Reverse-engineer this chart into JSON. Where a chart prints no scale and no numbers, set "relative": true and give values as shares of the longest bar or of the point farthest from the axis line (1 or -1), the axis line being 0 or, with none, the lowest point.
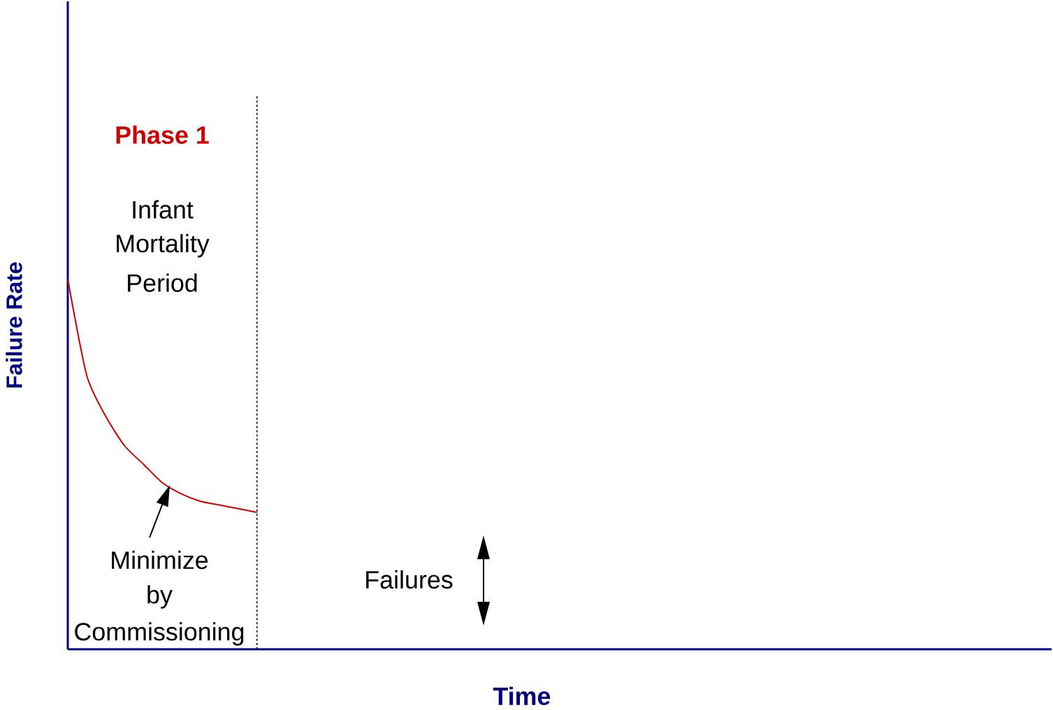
{
  "chart_data": {
    "type": "line",
    "relative": true,
    "marker": "none",
    "line_style": "solid",
    "xlabel": "Time",
    "ylabel": "Failure Rate",
    "categories": [
      null,
      null,
      null,
      null,
      null,
      null,
      null,
      null,
      null,
      null,
      null,
      null,
      null,
      null,
      null,
      null,
      null,
      null,
      null,
      null,
      null,
      null,
      null,
      null,
      null,
      null,
      null,
      null,
      null,
      null,
      null,
      null,
      null,
      null,
      null,
      null,
      null,
      null,
      null,
      null,
      null,
      null,
      null,
      null,
      null,
      null,
      null,
      null,
      null,
      null,
      null,
      null,
      null
    ],
    "series": [
      {
        "color": "#cc0000",
        "values": [
          1,
          0.74,
          0.63,
          0.55,
          0.5,
          0.45,
          0.42,
          0.4,
          0.39,
          0.38,
          0.37,
          null,
          null,
          null,
          null,
          null,
          null,
          null,
          null,
          null,
          null,
          null,
          null,
          null,
          null,
          null,
          null,
          null,
          null,
          null,
          null,
          null,
          null,
          null,
          null,
          null,
          null,
          null,
          null,
          null,
          null,
          null,
          null,
          null,
          null,
          null,
          null,
          null,
          null,
          null,
          null,
          null,
          null
        ]
      }
    ],
    "annotations": [
      "Phase 1",
      "Infant",
      "Mortality",
      "Period",
      "Minimize",
      "by",
      "Commissioning",
      "Failures"
    ]
  }
}
